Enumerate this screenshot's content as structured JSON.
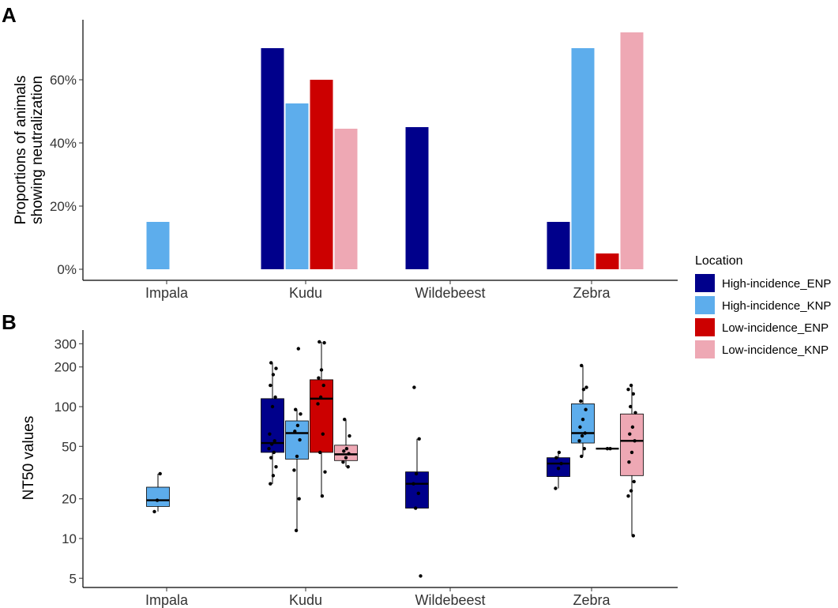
{
  "colors": {
    "High-incidence_ENP": "#00008B",
    "High-incidence_KNP": "#5DADEC",
    "Low-incidence_ENP": "#CC0000",
    "Low-incidence_KNP": "#EEA8B4"
  },
  "legend": {
    "title": "Location",
    "items": [
      "High-incidence_ENP",
      "High-incidence_KNP",
      "Low-incidence_ENP",
      "Low-incidence_KNP"
    ]
  },
  "chart_data": [
    {
      "panel": "A",
      "type": "bar",
      "ylabel_lines": [
        "Proportions of animals",
        "showing neutralization"
      ],
      "xlabel": "",
      "ylim": [
        0,
        0.78
      ],
      "yticks": [
        0,
        0.2,
        0.4,
        0.6
      ],
      "ytick_labels": [
        "0%",
        "20%",
        "40%",
        "60%"
      ],
      "categories": [
        "Impala",
        "Kudu",
        "Wildebeest",
        "Zebra"
      ],
      "series": [
        {
          "name": "High-incidence_ENP",
          "values": [
            null,
            0.7,
            0.45,
            0.15
          ]
        },
        {
          "name": "High-incidence_KNP",
          "values": [
            0.15,
            0.525,
            null,
            0.7
          ]
        },
        {
          "name": "Low-incidence_ENP",
          "values": [
            null,
            0.6,
            null,
            0.05
          ]
        },
        {
          "name": "Low-incidence_KNP",
          "values": [
            null,
            0.445,
            null,
            0.75
          ]
        }
      ]
    },
    {
      "panel": "B",
      "type": "box",
      "ylabel": "NT50 values",
      "xlabel": "",
      "yscale": "log10",
      "ylim": [
        4.2,
        380
      ],
      "yticks": [
        5,
        10,
        20,
        50,
        100,
        200,
        300
      ],
      "ytick_labels": [
        "5",
        "10",
        "20",
        "50",
        "100",
        "200",
        "300"
      ],
      "categories": [
        "Impala",
        "Kudu",
        "Wildebeest",
        "Zebra"
      ],
      "boxes": [
        {
          "category": "Impala",
          "series": "High-incidence_KNP",
          "min": 16,
          "q1": 17.5,
          "median": 19.5,
          "q3": 24.5,
          "max": 31,
          "points": [
            16,
            19.5,
            31
          ]
        },
        {
          "category": "Kudu",
          "series": "High-incidence_ENP",
          "min": 26,
          "q1": 45,
          "median": 53,
          "q3": 115,
          "max": 215,
          "points": [
            26,
            30,
            35,
            41,
            45,
            48,
            52,
            55,
            62,
            100,
            118,
            145,
            175,
            195,
            215
          ]
        },
        {
          "category": "Kudu",
          "series": "High-incidence_KNP",
          "min": 11.5,
          "q1": 40,
          "median": 63,
          "q3": 78,
          "max": 95,
          "points": [
            11.5,
            20,
            33,
            42,
            56,
            65,
            72,
            88,
            95,
            275
          ]
        },
        {
          "category": "Kudu",
          "series": "Low-incidence_ENP",
          "min": 21,
          "q1": 45,
          "median": 115,
          "q3": 160,
          "max": 310,
          "points": [
            21,
            32,
            45,
            62,
            105,
            118,
            145,
            165,
            190,
            305,
            310
          ]
        },
        {
          "category": "Kudu",
          "series": "Low-incidence_KNP",
          "min": 35,
          "q1": 39,
          "median": 43.5,
          "q3": 51,
          "max": 80,
          "points": [
            35,
            38,
            41,
            44,
            46,
            48,
            60,
            80
          ]
        },
        {
          "category": "Wildebeest",
          "series": "High-incidence_ENP",
          "min": 17,
          "q1": 17,
          "median": 26,
          "q3": 32,
          "max": 57,
          "points": [
            5.2,
            17,
            22,
            26,
            31,
            57,
            140
          ]
        },
        {
          "category": "Zebra",
          "series": "High-incidence_ENP",
          "min": 24,
          "q1": 29.5,
          "median": 37,
          "q3": 41,
          "max": 45,
          "points": [
            24,
            34,
            37,
            41,
            45
          ]
        },
        {
          "category": "Zebra",
          "series": "High-incidence_KNP",
          "min": 42,
          "q1": 53,
          "median": 63,
          "q3": 105,
          "max": 205,
          "points": [
            42,
            48,
            55,
            60,
            63,
            70,
            80,
            95,
            110,
            135,
            140,
            205
          ]
        },
        {
          "category": "Zebra",
          "series": "Low-incidence_ENP",
          "min": 48,
          "q1": 48,
          "median": 48,
          "q3": 48,
          "max": 48,
          "points": [
            48,
            48
          ]
        },
        {
          "category": "Zebra",
          "series": "Low-incidence_KNP",
          "min": 10.5,
          "q1": 30,
          "median": 55,
          "q3": 88,
          "max": 145,
          "points": [
            10.5,
            21,
            23,
            27,
            38,
            45,
            55,
            62,
            70,
            90,
            100,
            125,
            135,
            145
          ]
        }
      ]
    }
  ]
}
